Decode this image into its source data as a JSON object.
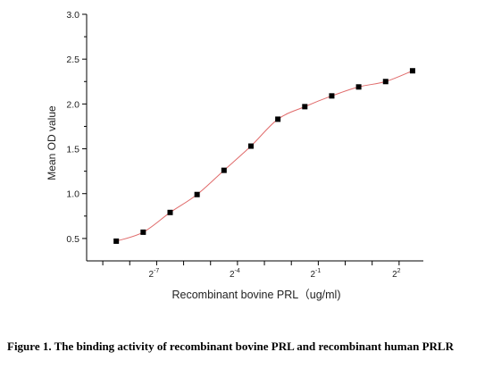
{
  "chart_data": {
    "type": "scatter",
    "xlabel": "Recombinant bovine PRL（ug/ml)",
    "ylabel": "Mean OD value",
    "xscale": "log2",
    "xlim": [
      -9.6,
      2.9
    ],
    "ylim": [
      0.25,
      3.0
    ],
    "y_ticks": [
      0.5,
      1.0,
      1.5,
      2.0,
      2.5,
      3.0
    ],
    "y_tick_labels": [
      "0.5",
      "1.0",
      "1.5",
      "2.0",
      "2.5",
      "3.0"
    ],
    "x_ticks_labeled": [
      {
        "base": "2",
        "exp": "-7",
        "value": -7
      },
      {
        "base": "2",
        "exp": "-4",
        "value": -4
      },
      {
        "base": "2",
        "exp": "-1",
        "value": -1
      },
      {
        "base": "2",
        "exp": "2",
        "value": 2
      }
    ],
    "x_ticks_minor": [
      -9,
      -8,
      -6,
      -5,
      -3,
      -2,
      0,
      1
    ],
    "series": [
      {
        "points": [
          {
            "x": -8.5,
            "y": 0.47
          },
          {
            "x": -7.5,
            "y": 0.57
          },
          {
            "x": -6.5,
            "y": 0.79
          },
          {
            "x": -5.5,
            "y": 0.99
          },
          {
            "x": -4.5,
            "y": 1.26
          },
          {
            "x": -3.5,
            "y": 1.53
          },
          {
            "x": -2.5,
            "y": 1.83
          },
          {
            "x": -1.5,
            "y": 1.97
          },
          {
            "x": -0.5,
            "y": 2.09
          },
          {
            "x": 0.5,
            "y": 2.19
          },
          {
            "x": 1.5,
            "y": 2.25
          },
          {
            "x": 2.5,
            "y": 2.37
          }
        ],
        "marker_color": "#000000",
        "fit_color": "#e06b6b"
      }
    ],
    "grid": false,
    "legend": "none"
  },
  "caption": "Figure 1. The binding activity of recombinant bovine PRL and recombinant human PRLR"
}
